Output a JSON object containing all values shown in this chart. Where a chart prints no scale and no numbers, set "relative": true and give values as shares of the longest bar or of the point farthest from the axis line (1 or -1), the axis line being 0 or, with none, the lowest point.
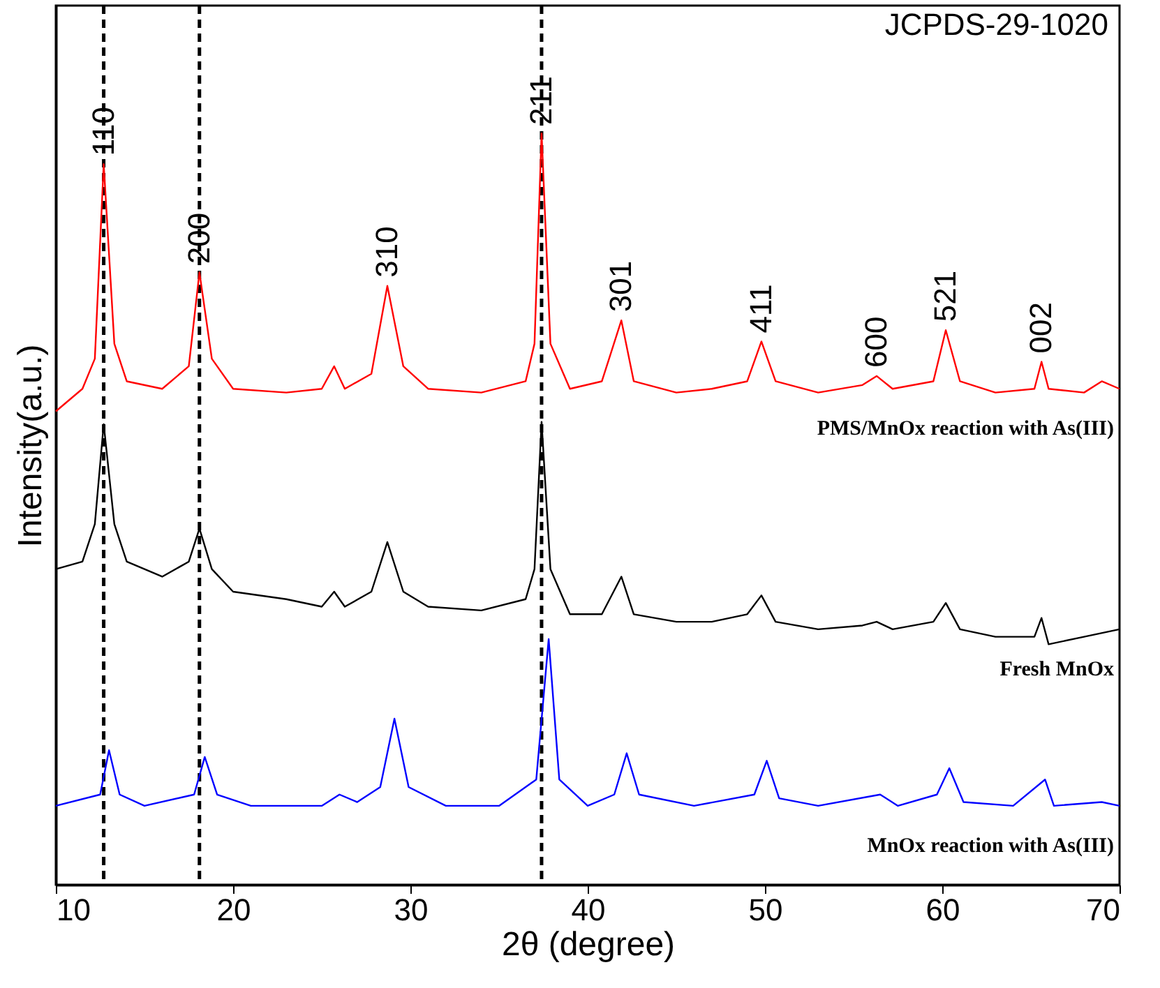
{
  "chart_data": {
    "type": "line",
    "relative": true,
    "xlabel": "2θ (degree)",
    "ylabel": "Intensity(a.u.)",
    "xlim": [
      10,
      70
    ],
    "xticks": [
      10,
      20,
      30,
      40,
      50,
      60,
      70
    ],
    "grid": false,
    "marker": "none",
    "line_style": "solid",
    "series": [
      {
        "name": "PMS/MnOx reaction with As(III)",
        "color": "#ff0000",
        "x": [
          10,
          11.5,
          12.2,
          12.7,
          13.3,
          14,
          16,
          17.5,
          18.1,
          18.8,
          20,
          23,
          25,
          25.7,
          26.3,
          27.8,
          28.7,
          29.6,
          31,
          34,
          36.5,
          37.0,
          37.4,
          37.9,
          39,
          40.8,
          41.9,
          42.6,
          45,
          47,
          49,
          49.8,
          50.6,
          53,
          55.5,
          56.3,
          57.2,
          59.5,
          60.2,
          61,
          63,
          65.2,
          65.6,
          66,
          68,
          69,
          70
        ],
        "values": [
          0.63,
          0.66,
          0.7,
          0.959,
          0.72,
          0.67,
          0.66,
          0.69,
          0.815,
          0.7,
          0.66,
          0.655,
          0.66,
          0.69,
          0.66,
          0.68,
          0.797,
          0.69,
          0.66,
          0.655,
          0.67,
          0.72,
          1.0,
          0.72,
          0.66,
          0.67,
          0.751,
          0.67,
          0.655,
          0.66,
          0.67,
          0.723,
          0.67,
          0.655,
          0.665,
          0.677,
          0.66,
          0.67,
          0.738,
          0.67,
          0.655,
          0.66,
          0.696,
          0.66,
          0.655,
          0.67,
          0.66
        ]
      },
      {
        "name": "Fresh MnOx",
        "color": "#000000",
        "x": [
          10,
          11.5,
          12.2,
          12.7,
          13.3,
          14,
          16,
          17.5,
          18.1,
          18.8,
          20,
          23,
          25,
          25.7,
          26.3,
          27.8,
          28.7,
          29.6,
          31,
          34,
          36.5,
          37.0,
          37.4,
          37.9,
          39,
          40.8,
          41.9,
          42.6,
          45,
          47,
          49,
          49.8,
          50.6,
          53,
          55.5,
          56.3,
          57.2,
          59.5,
          60.2,
          61,
          63,
          65.2,
          65.6,
          66,
          68,
          70
        ],
        "values": [
          0.42,
          0.43,
          0.48,
          0.613,
          0.48,
          0.43,
          0.41,
          0.43,
          0.474,
          0.42,
          0.39,
          0.38,
          0.37,
          0.39,
          0.37,
          0.39,
          0.456,
          0.39,
          0.37,
          0.365,
          0.38,
          0.42,
          0.616,
          0.42,
          0.36,
          0.36,
          0.41,
          0.36,
          0.35,
          0.35,
          0.36,
          0.385,
          0.35,
          0.34,
          0.345,
          0.35,
          0.34,
          0.35,
          0.375,
          0.34,
          0.33,
          0.33,
          0.355,
          0.32,
          0.33,
          0.34
        ]
      },
      {
        "name": "MnOx reaction with As(III)",
        "color": "#0000ff",
        "x": [
          10,
          12.5,
          13.0,
          13.6,
          15,
          17.8,
          18.4,
          19.1,
          21,
          25,
          26,
          27,
          28.3,
          29.1,
          29.9,
          32,
          35,
          37.1,
          37.8,
          38.4,
          40,
          41.5,
          42.2,
          42.9,
          46,
          49.4,
          50.1,
          50.8,
          53,
          56.5,
          57.5,
          59.7,
          60.4,
          61.2,
          64,
          65.8,
          66.3,
          69,
          70
        ],
        "values": [
          0.105,
          0.12,
          0.179,
          0.12,
          0.105,
          0.12,
          0.17,
          0.12,
          0.105,
          0.105,
          0.12,
          0.11,
          0.13,
          0.221,
          0.13,
          0.105,
          0.105,
          0.14,
          0.327,
          0.14,
          0.105,
          0.12,
          0.175,
          0.12,
          0.105,
          0.12,
          0.165,
          0.115,
          0.105,
          0.12,
          0.105,
          0.12,
          0.155,
          0.11,
          0.105,
          0.14,
          0.105,
          0.11,
          0.105
        ]
      }
    ],
    "ref_lines": [
      {
        "axis": "x",
        "value": 12.7,
        "color": "#000000",
        "line_style": "dashed"
      },
      {
        "axis": "x",
        "value": 18.1,
        "color": "#000000",
        "line_style": "dashed"
      },
      {
        "axis": "x",
        "value": 37.4,
        "color": "#000000",
        "line_style": "dashed"
      }
    ],
    "annotations": [
      "JCPDS-29-1020",
      {
        "text": "110",
        "x": 12.7,
        "y": 0.959
      },
      {
        "text": "200",
        "x": 18.1,
        "y": 0.815
      },
      {
        "text": "310",
        "x": 28.7,
        "y": 0.797
      },
      {
        "text": "211",
        "x": 37.4,
        "y": 1.0
      },
      {
        "text": "301",
        "x": 41.9,
        "y": 0.751
      },
      {
        "text": "411",
        "x": 49.8,
        "y": 0.723
      },
      {
        "text": "600",
        "x": 56.3,
        "y": 0.677
      },
      {
        "text": "521",
        "x": 60.2,
        "y": 0.738
      },
      {
        "text": "002",
        "x": 65.6,
        "y": 0.696
      }
    ]
  }
}
